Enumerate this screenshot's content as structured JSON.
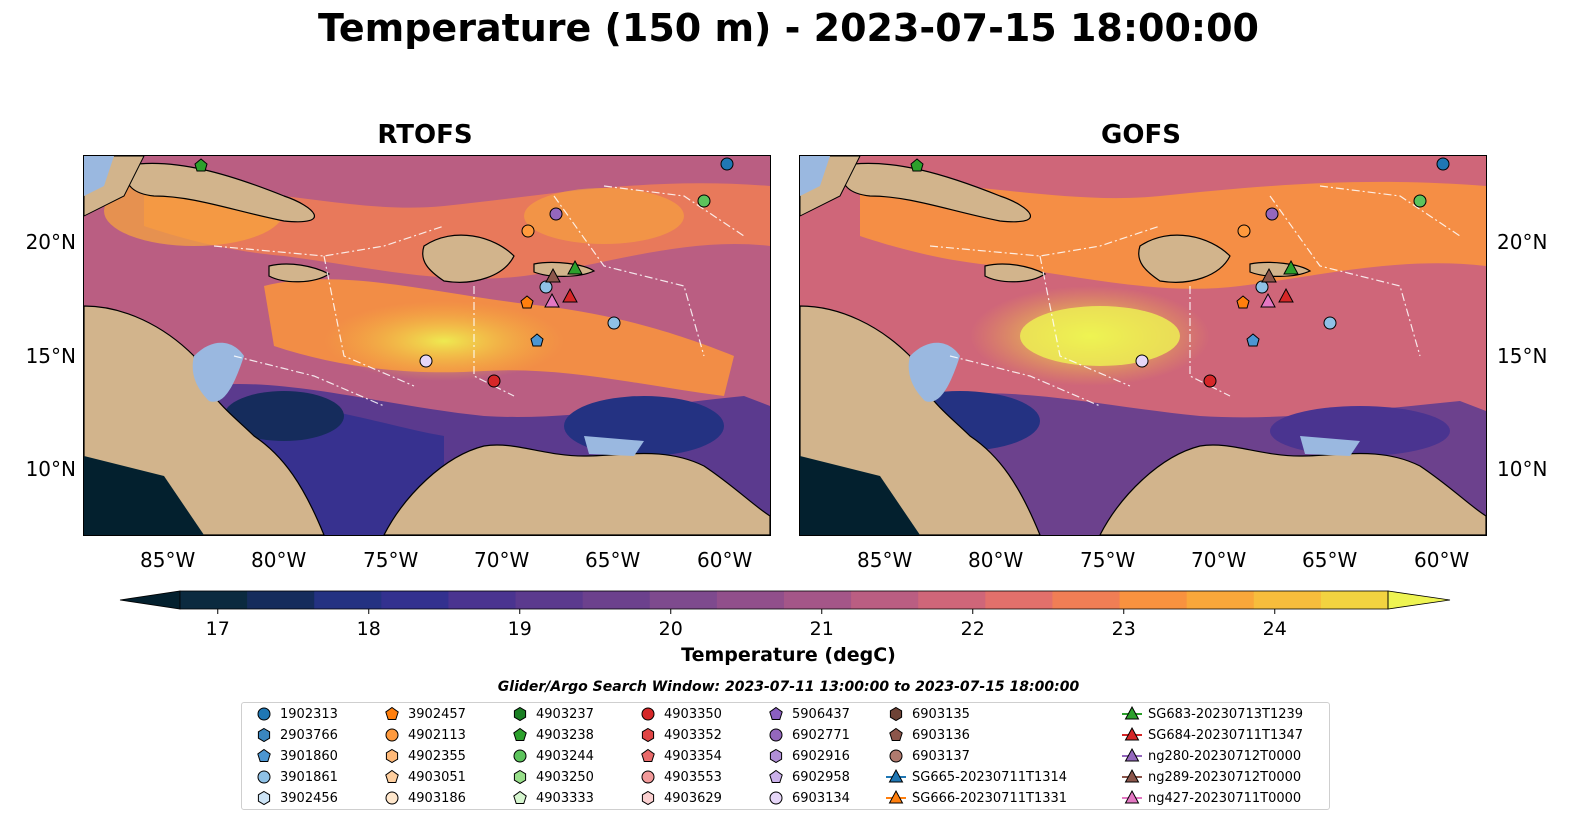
{
  "title": "Temperature (150 m) - 2023-07-15 18:00:00",
  "panels": [
    {
      "title": "RTOFS"
    },
    {
      "title": "GOFS"
    }
  ],
  "lon_ticks": [
    "85°W",
    "80°W",
    "75°W",
    "70°W",
    "65°W",
    "60°W"
  ],
  "lat_ticks": [
    "20°N",
    "15°N",
    "10°N"
  ],
  "colorbar": {
    "label": "Temperature (degC)",
    "ticks": [
      "17",
      "18",
      "19",
      "20",
      "21",
      "22",
      "23",
      "24"
    ],
    "min": 16.75,
    "max": 24.75,
    "colors": [
      "#03202e",
      "#0b2a3f",
      "#152c5c",
      "#243282",
      "#33318f",
      "#4a3490",
      "#5b3a8e",
      "#6c418d",
      "#7e4a8e",
      "#914f8b",
      "#a45688",
      "#ba5e82",
      "#cf6679",
      "#e2706b",
      "#f07e55",
      "#f8923f",
      "#f9a73a",
      "#f7bd3c",
      "#f2d340",
      "#eef452"
    ]
  },
  "search_window": "Glider/Argo Search Window: 2023-07-11 13:00:00 to 2023-07-15 18:00:00",
  "legend": {
    "columns": [
      [
        {
          "label": "1902313",
          "shape": "circle",
          "color": "#1f77b4"
        },
        {
          "label": "2903766",
          "shape": "hexagon",
          "color": "#3a86bf"
        },
        {
          "label": "3901860",
          "shape": "pentagon",
          "color": "#4c96d2"
        },
        {
          "label": "3901861",
          "shape": "circle",
          "color": "#8fc1e6"
        },
        {
          "label": "3902456",
          "shape": "hexagon",
          "color": "#cde4f6"
        }
      ],
      [
        {
          "label": "3902457",
          "shape": "pentagon",
          "color": "#ff7f0e"
        },
        {
          "label": "4902113",
          "shape": "circle",
          "color": "#ff9a3d"
        },
        {
          "label": "4902355",
          "shape": "hexagon",
          "color": "#ffb978"
        },
        {
          "label": "4903051",
          "shape": "pentagon",
          "color": "#ffcf9f"
        },
        {
          "label": "4903186",
          "shape": "circle",
          "color": "#ffe7cc"
        }
      ],
      [
        {
          "label": "4903237",
          "shape": "hexagon",
          "color": "#1a7f23"
        },
        {
          "label": "4903238",
          "shape": "pentagon",
          "color": "#2ca02c"
        },
        {
          "label": "4903244",
          "shape": "circle",
          "color": "#5cc35c"
        },
        {
          "label": "4903250",
          "shape": "hexagon",
          "color": "#98df8a"
        },
        {
          "label": "4903333",
          "shape": "pentagon",
          "color": "#d6f6cf"
        }
      ],
      [
        {
          "label": "4903350",
          "shape": "circle",
          "color": "#d62728"
        },
        {
          "label": "4903352",
          "shape": "hexagon",
          "color": "#e04545"
        },
        {
          "label": "4903354",
          "shape": "pentagon",
          "color": "#e86a6a"
        },
        {
          "label": "4903553",
          "shape": "circle",
          "color": "#f29a9a"
        },
        {
          "label": "4903629",
          "shape": "hexagon",
          "color": "#fbd0d0"
        }
      ],
      [
        {
          "label": "5906437",
          "shape": "pentagon",
          "color": "#8b5fc0"
        },
        {
          "label": "6902771",
          "shape": "circle",
          "color": "#9467bd"
        },
        {
          "label": "6902916",
          "shape": "hexagon",
          "color": "#b08fd6"
        },
        {
          "label": "6902958",
          "shape": "pentagon",
          "color": "#cbb1ea"
        },
        {
          "label": "6903134",
          "shape": "circle",
          "color": "#e6d6f8"
        }
      ],
      [
        {
          "label": "6903135",
          "shape": "hexagon",
          "color": "#6e4336"
        },
        {
          "label": "6903136",
          "shape": "pentagon",
          "color": "#8c564b"
        },
        {
          "label": "6903137",
          "shape": "circle",
          "color": "#b07a6e"
        },
        {
          "label": "SG665-20230711T1314",
          "shape": "triangle-line",
          "color": "#1f77b4"
        },
        {
          "label": "SG666-20230711T1331",
          "shape": "triangle-line",
          "color": "#ff7f0e"
        }
      ],
      [
        {
          "label": "SG683-20230713T1239",
          "shape": "triangle-line",
          "color": "#2ca02c"
        },
        {
          "label": "SG684-20230711T1347",
          "shape": "triangle-line",
          "color": "#d62728"
        },
        {
          "label": "ng280-20230712T0000",
          "shape": "triangle-line",
          "color": "#9467bd"
        },
        {
          "label": "ng289-20230712T0000",
          "shape": "triangle-line",
          "color": "#8c564b"
        },
        {
          "label": "ng427-20230711T0000",
          "shape": "triangle-line",
          "color": "#e377c2"
        }
      ]
    ]
  }
}
